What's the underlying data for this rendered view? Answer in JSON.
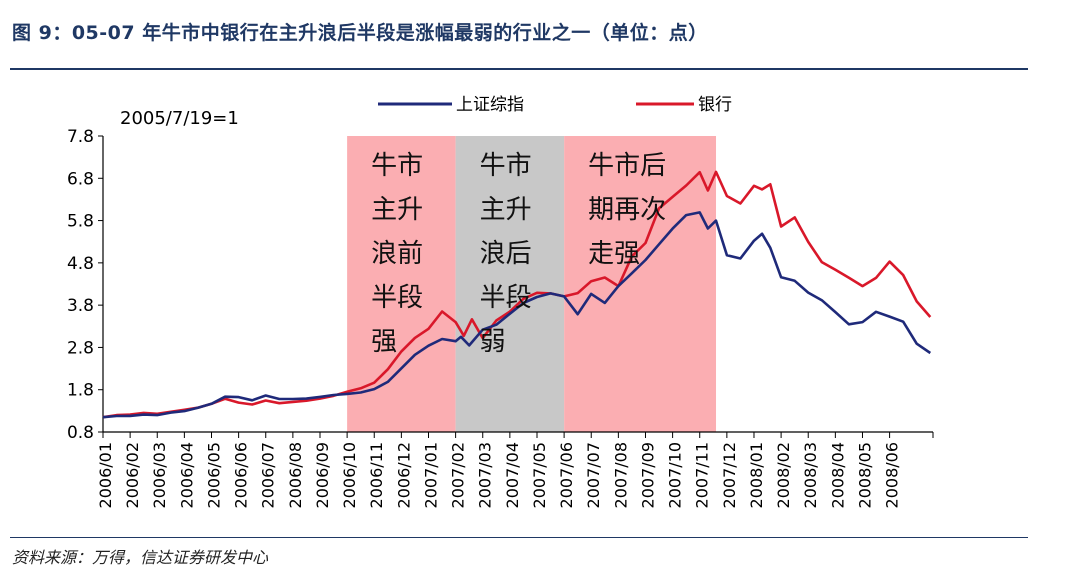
{
  "title": "图 9：05-07 年牛市中银行在主升浪后半段是涨幅最弱的行业之一（单位：点）",
  "source": "资料来源：万得，信达证券研发中心",
  "chart_data": {
    "type": "line",
    "base_note": "2005/7/19=1",
    "ylim": [
      0.8,
      7.8
    ],
    "y_ticks": [
      "0.8",
      "1.8",
      "2.8",
      "3.8",
      "4.8",
      "5.8",
      "6.8",
      "7.8"
    ],
    "x_ticks": [
      "2006/01",
      "2006/02",
      "2006/03",
      "2006/04",
      "2006/05",
      "2006/06",
      "2006/07",
      "2006/08",
      "2006/09",
      "2006/10",
      "2006/11",
      "2006/12",
      "2007/01",
      "2007/02",
      "2007/03",
      "2007/04",
      "2007/05",
      "2007/06",
      "2007/07",
      "2007/08",
      "2007/09",
      "2007/10",
      "2007/11",
      "2007/12",
      "2008/01",
      "2008/02",
      "2008/03",
      "2008/04",
      "2008/05",
      "2008/06"
    ],
    "x_range": [
      0,
      30.6
    ],
    "colors": {
      "shanghai": "#1f2a7a",
      "bank": "#d9182a",
      "pink": "#fbaeb2",
      "gray": "#c8c8c8"
    },
    "regions": [
      {
        "start": 9.0,
        "end": 13.0,
        "color": "pink",
        "lines": [
          "牛市",
          "主升",
          "浪前",
          "半段",
          "强"
        ]
      },
      {
        "start": 13.0,
        "end": 17.0,
        "color": "gray",
        "lines": [
          "牛市",
          "主升",
          "浪后",
          "半段",
          "弱"
        ]
      },
      {
        "start": 17.0,
        "end": 22.6,
        "color": "pink",
        "lines": [
          "牛市后",
          "期再次",
          "走强"
        ]
      }
    ],
    "series": [
      {
        "name": "上证综指",
        "key": "shanghai",
        "x": [
          0,
          0.5,
          1,
          1.5,
          2,
          2.5,
          3,
          3.5,
          4,
          4.5,
          5,
          5.5,
          6,
          6.5,
          7,
          7.5,
          8,
          8.5,
          9,
          9.5,
          10,
          10.5,
          11,
          11.5,
          12,
          12.5,
          13,
          13.2,
          13.5,
          14,
          14.5,
          15,
          15.5,
          16,
          16.5,
          17,
          17.5,
          18,
          18.5,
          19,
          19.5,
          20,
          20.5,
          21,
          21.5,
          22,
          22.3,
          22.6,
          23,
          23.5,
          24,
          24.3,
          24.6,
          25,
          25.5,
          26,
          26.5,
          27,
          27.5,
          28,
          28.5,
          29,
          29.5,
          30,
          30.5
        ],
        "y": [
          1.15,
          1.2,
          1.22,
          1.26,
          1.25,
          1.3,
          1.32,
          1.38,
          1.45,
          1.6,
          1.58,
          1.5,
          1.62,
          1.55,
          1.57,
          1.6,
          1.66,
          1.72,
          1.75,
          1.78,
          1.85,
          2.0,
          2.3,
          2.6,
          2.8,
          2.95,
          2.9,
          3.1,
          2.85,
          3.2,
          3.3,
          3.55,
          3.8,
          3.95,
          4.05,
          4.0,
          3.6,
          4.1,
          3.9,
          4.3,
          4.6,
          4.9,
          5.25,
          5.6,
          5.9,
          5.95,
          5.6,
          5.85,
          5.0,
          4.9,
          5.3,
          5.45,
          5.2,
          4.5,
          4.4,
          4.1,
          3.9,
          3.6,
          3.3,
          3.35,
          3.6,
          3.5,
          3.4,
          2.9,
          2.7
        ]
      },
      {
        "name": "银行",
        "key": "bank",
        "x": [
          0,
          0.5,
          1,
          1.5,
          2,
          2.5,
          3,
          3.5,
          4,
          4.5,
          5,
          5.5,
          6,
          6.5,
          7,
          7.5,
          8,
          8.5,
          9,
          9.5,
          10,
          10.5,
          11,
          11.5,
          12,
          12.5,
          13,
          13.3,
          13.6,
          14,
          14.5,
          15,
          15.5,
          16,
          16.5,
          17,
          17.5,
          18,
          18.5,
          19,
          19.5,
          20,
          20.5,
          21,
          21.5,
          22,
          22.3,
          22.6,
          23,
          23.5,
          24,
          24.3,
          24.6,
          25,
          25.5,
          26,
          26.5,
          27,
          27.5,
          28,
          28.5,
          29,
          29.5,
          30,
          30.5
        ],
        "y": [
          1.15,
          1.22,
          1.25,
          1.3,
          1.28,
          1.32,
          1.35,
          1.38,
          1.45,
          1.55,
          1.45,
          1.4,
          1.5,
          1.45,
          1.5,
          1.55,
          1.62,
          1.7,
          1.8,
          1.88,
          2.0,
          2.3,
          2.7,
          3.0,
          3.2,
          3.6,
          3.35,
          3.1,
          3.5,
          3.0,
          3.4,
          3.6,
          3.9,
          4.05,
          4.05,
          4.0,
          4.1,
          4.4,
          4.5,
          4.3,
          5.0,
          5.3,
          6.1,
          6.35,
          6.6,
          6.9,
          6.5,
          7.0,
          6.4,
          6.2,
          6.6,
          6.5,
          6.7,
          5.7,
          5.9,
          5.3,
          4.8,
          4.6,
          4.4,
          4.2,
          4.4,
          4.8,
          4.5,
          3.9,
          3.55
        ]
      }
    ]
  }
}
